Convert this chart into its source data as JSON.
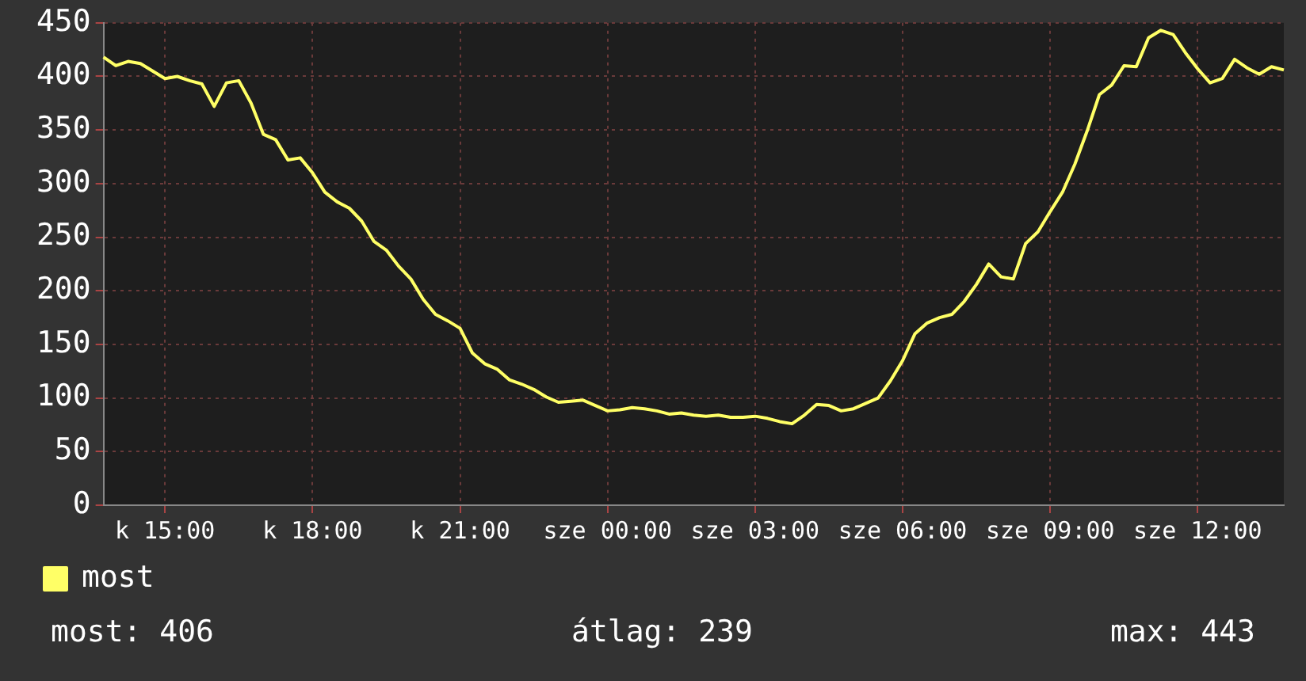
{
  "chart_data": {
    "type": "line",
    "categories": [
      null,
      null,
      null,
      null,
      null,
      "k 15:00",
      null,
      null,
      null,
      null,
      null,
      null,
      null,
      null,
      null,
      null,
      null,
      "k 18:00",
      null,
      null,
      null,
      null,
      null,
      null,
      null,
      null,
      null,
      null,
      null,
      "k 21:00",
      null,
      null,
      null,
      null,
      null,
      null,
      null,
      null,
      null,
      null,
      null,
      "sze 00:00",
      null,
      null,
      null,
      null,
      null,
      null,
      null,
      null,
      null,
      null,
      null,
      "sze 03:00",
      null,
      null,
      null,
      null,
      null,
      null,
      null,
      null,
      null,
      null,
      null,
      "sze 06:00",
      null,
      null,
      null,
      null,
      null,
      null,
      null,
      null,
      null,
      null,
      null,
      "sze 09:00",
      null,
      null,
      null,
      null,
      null,
      null,
      null,
      null,
      null,
      null,
      null,
      "sze 12:00",
      null,
      null,
      null,
      null,
      null,
      null,
      null
    ],
    "series": [
      {
        "name": "most",
        "color": "#ffff66",
        "values": [
          418,
          410,
          414,
          412,
          405,
          398,
          400,
          396,
          393,
          372,
          394,
          396,
          375,
          346,
          341,
          322,
          324,
          310,
          292,
          283,
          277,
          265,
          246,
          238,
          223,
          211,
          192,
          178,
          172,
          165,
          142,
          132,
          127,
          117,
          113,
          108,
          101,
          96,
          97,
          98,
          93,
          88,
          89,
          91,
          90,
          88,
          85,
          86,
          84,
          83,
          84,
          82,
          82,
          83,
          81,
          78,
          76,
          84,
          94,
          93,
          88,
          90,
          95,
          100,
          116,
          135,
          160,
          170,
          175,
          178,
          190,
          206,
          225,
          213,
          211,
          244,
          255,
          274,
          292,
          318,
          349,
          383,
          392,
          410,
          409,
          436,
          443,
          439,
          422,
          407,
          394,
          398,
          416,
          408,
          402,
          409,
          406
        ]
      }
    ],
    "ylim": [
      0,
      450
    ],
    "yticks": [
      0,
      50,
      100,
      150,
      200,
      250,
      300,
      350,
      400,
      450
    ],
    "grid": true,
    "legend": "bottom left",
    "marker": "none",
    "line_style": "solid",
    "annotations": [
      "most: 406",
      "átlag: 239",
      "max: 443"
    ]
  }
}
